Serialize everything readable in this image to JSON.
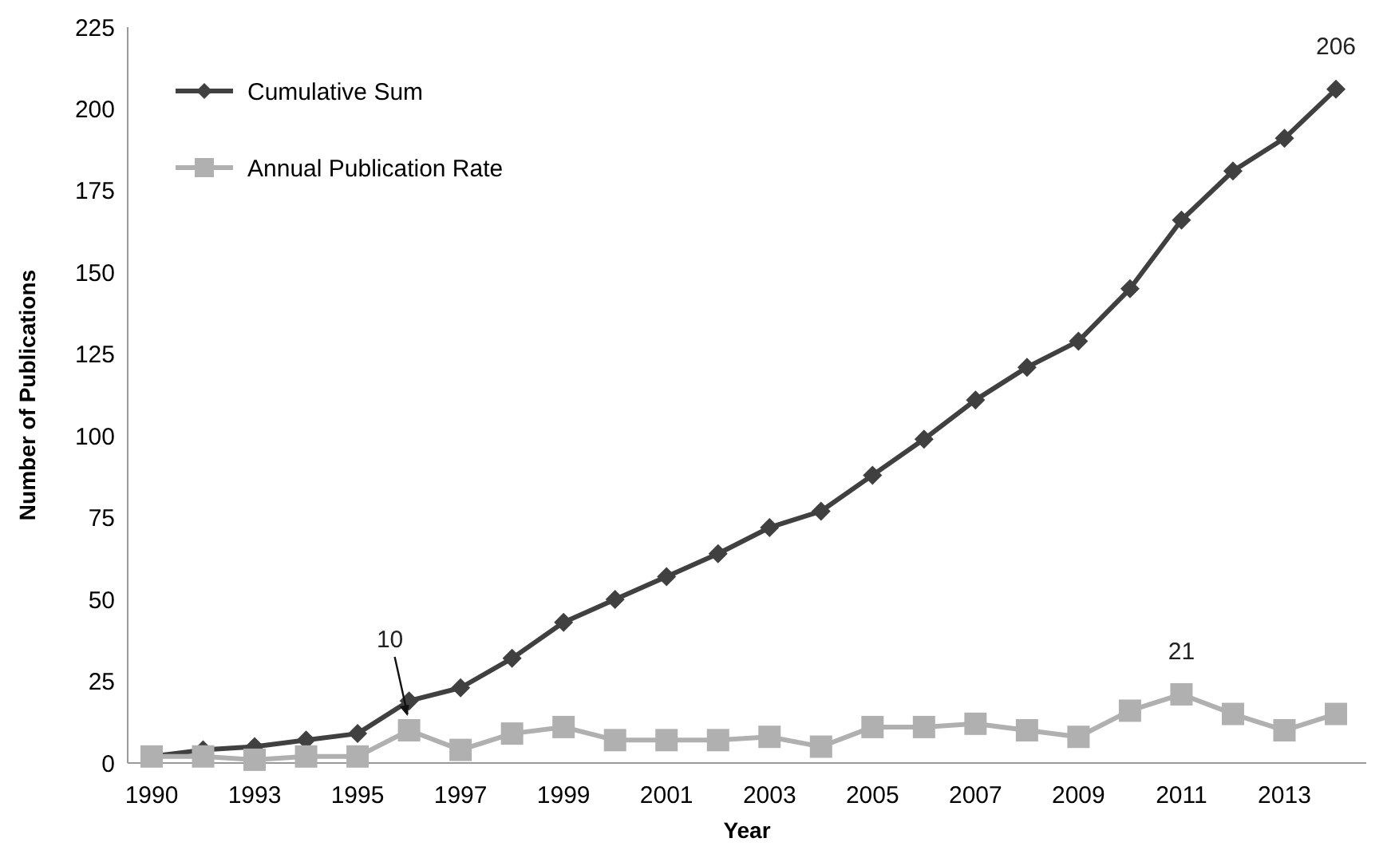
{
  "chart_data": {
    "type": "line",
    "xlabel": "Year",
    "ylabel": "Number of Publications",
    "categories": [
      "1990",
      null,
      "1993",
      null,
      "1995",
      null,
      "1997",
      null,
      "1999",
      null,
      "2001",
      null,
      "2003",
      null,
      "2005",
      null,
      "2007",
      null,
      "2009",
      null,
      "2011",
      null,
      "2013",
      null
    ],
    "series": [
      {
        "name": "Cumulative Sum",
        "color": "#404040",
        "marker": "diamond",
        "values": [
          2,
          4,
          5,
          7,
          9,
          19,
          23,
          32,
          43,
          50,
          57,
          64,
          72,
          77,
          88,
          99,
          111,
          121,
          129,
          145,
          166,
          181,
          191,
          206
        ],
        "value_labels": [
          null,
          null,
          null,
          null,
          null,
          null,
          null,
          null,
          null,
          null,
          null,
          null,
          null,
          null,
          null,
          null,
          null,
          null,
          null,
          null,
          null,
          null,
          null,
          "206"
        ]
      },
      {
        "name": "Annual Publication Rate",
        "color": "#b0b0b0",
        "marker": "square",
        "values": [
          2,
          2,
          1,
          2,
          2,
          10,
          4,
          9,
          11,
          7,
          7,
          7,
          8,
          5,
          11,
          11,
          12,
          10,
          8,
          16,
          21,
          15,
          10,
          15
        ],
        "value_labels": [
          null,
          null,
          null,
          null,
          null,
          "10",
          null,
          null,
          null,
          null,
          null,
          null,
          null,
          null,
          null,
          null,
          null,
          null,
          null,
          null,
          "21",
          null,
          null,
          null
        ]
      }
    ],
    "ylim": [
      0,
      225
    ],
    "yticks": [
      0,
      25,
      50,
      75,
      100,
      125,
      150,
      175,
      200,
      225
    ],
    "legend": "top left",
    "line_style": "solid"
  }
}
